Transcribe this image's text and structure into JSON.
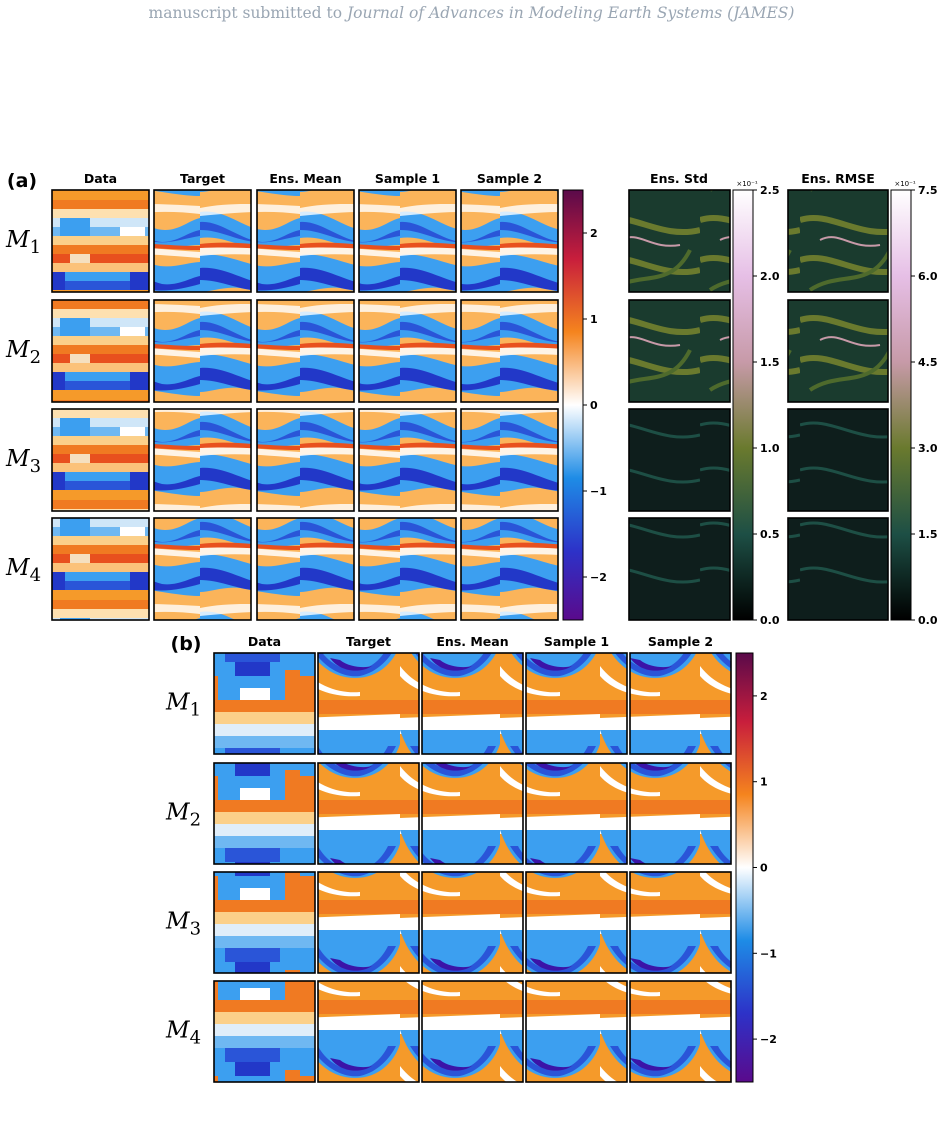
{
  "header": {
    "prefix": "manuscript submitted to ",
    "journal": "Journal of Advances in Modeling Earth Systems (JAMES)"
  },
  "figure": {
    "panel_a": {
      "tag": "(a)",
      "columns": [
        "Data",
        "Target",
        "Ens. Mean",
        "Sample 1",
        "Sample 2"
      ],
      "extra_columns": [
        "Ens. Std",
        "Ens. RMSE"
      ],
      "rows": [
        {
          "base": "M",
          "sub": "1"
        },
        {
          "base": "M",
          "sub": "2"
        },
        {
          "base": "M",
          "sub": "3"
        },
        {
          "base": "M",
          "sub": "4"
        }
      ],
      "field_colorbar": {
        "ticks": [
          "2",
          "1",
          "0",
          "−1",
          "−2"
        ],
        "colors": [
          "#5a0a4a",
          "#c81e3c",
          "#f5841e",
          "#ffffff",
          "#1e8ce6",
          "#2d32c8",
          "#5a0a8c"
        ]
      },
      "std_colorbar": {
        "multiplier": "×10⁻¹",
        "ticks": [
          "2.5",
          "2.0",
          "1.5",
          "1.0",
          "0.5",
          "0.0"
        ]
      },
      "rmse_colorbar": {
        "multiplier": "×10⁻¹",
        "ticks": [
          "7.5",
          "6.0",
          "4.5",
          "3.0",
          "1.5",
          "0.0"
        ]
      }
    },
    "panel_b": {
      "tag": "(b)",
      "columns": [
        "Data",
        "Target",
        "Ens. Mean",
        "Sample 1",
        "Sample 2"
      ],
      "rows": [
        {
          "base": "M",
          "sub": "1"
        },
        {
          "base": "M",
          "sub": "2"
        },
        {
          "base": "M",
          "sub": "3"
        },
        {
          "base": "M",
          "sub": "4"
        }
      ],
      "field_colorbar": {
        "ticks": [
          "2",
          "1",
          "0",
          "−1",
          "−2"
        ]
      }
    }
  }
}
